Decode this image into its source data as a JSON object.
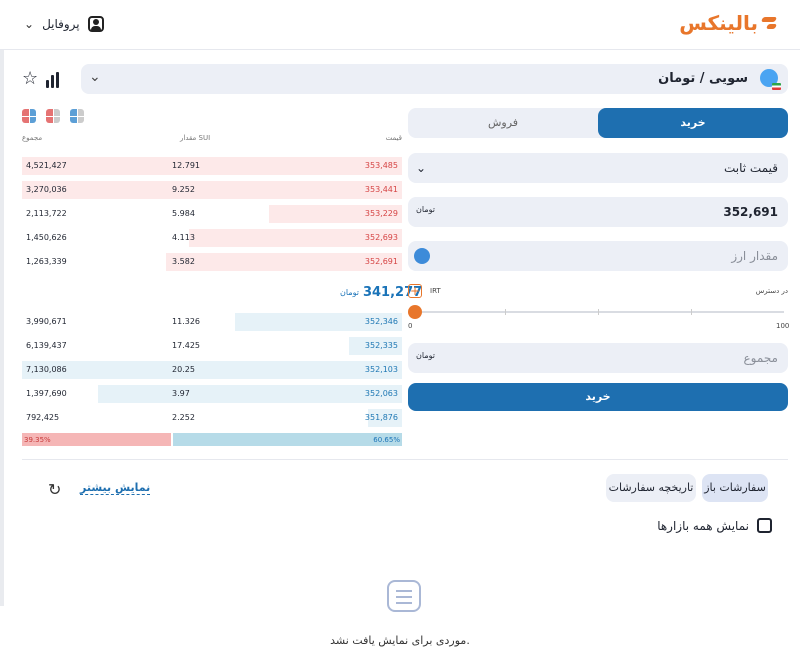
{
  "header": {
    "brand": "بالینکس",
    "profile_label": "پروفایل"
  },
  "market": {
    "title": "سویی / تومان"
  },
  "orderbook": {
    "headers": {
      "price": "قیمت",
      "amount": "مقدار SUI",
      "total": "مجموع"
    },
    "asks": [
      {
        "price": "353,485",
        "amount": "12.791",
        "total": "4,521,427",
        "depth": 1.0
      },
      {
        "price": "353,441",
        "amount": "9.252",
        "total": "3,270,036",
        "depth": 1.0
      },
      {
        "price": "353,229",
        "amount": "5.984",
        "total": "2,113,722",
        "depth": 0.35
      },
      {
        "price": "352,693",
        "amount": "4.113",
        "total": "1,450,626",
        "depth": 0.56
      },
      {
        "price": "352,691",
        "amount": "3.582",
        "total": "1,263,339",
        "depth": 0.62
      }
    ],
    "last_price": "341,277",
    "bids": [
      {
        "price": "352,346",
        "amount": "11.326",
        "total": "3,990,671",
        "depth": 0.44
      },
      {
        "price": "352,335",
        "amount": "17.425",
        "total": "6,139,437",
        "depth": 0.14
      },
      {
        "price": "352,103",
        "amount": "20.25",
        "total": "7,130,086",
        "depth": 1.0
      },
      {
        "price": "352,063",
        "amount": "3.97",
        "total": "1,397,690",
        "depth": 0.8
      },
      {
        "price": "351,876",
        "amount": "2.252",
        "total": "792,425",
        "depth": 0.09
      }
    ],
    "sell_ratio": "39.35%",
    "buy_ratio": "60.65%",
    "sell_ratio_value": 39.35
  },
  "trade_form": {
    "tab_buy": "خرید",
    "tab_sell": "فروش",
    "order_type": "قیمت ثابت",
    "price_value": "352,691",
    "amount_placeholder": "مقدار ارز",
    "available_label": "در دسترس",
    "currency": "IRT",
    "slider_min": "0",
    "slider_max": "100",
    "slider_value": 0,
    "total_placeholder": "مجموع",
    "submit_label": "خرید"
  },
  "orders": {
    "tab_open": "سفارشات باز",
    "tab_history": "تاریخچه سفارشات",
    "show_more": "نمایش بیشتر",
    "show_all_markets": "نمایش همه بازارها",
    "empty_text": "موردی برای نمایش یافت نشد."
  },
  "colors": {
    "brand": "#e8762b",
    "primary": "#1e6fb0",
    "ask": "#d64545",
    "bid": "#1f78b4"
  },
  "icons": [
    "user-icon",
    "chevron-down-icon",
    "star-icon",
    "chart-bars-icon",
    "coin-icon",
    "plus-icon",
    "refresh-icon",
    "empty-box-icon"
  ]
}
